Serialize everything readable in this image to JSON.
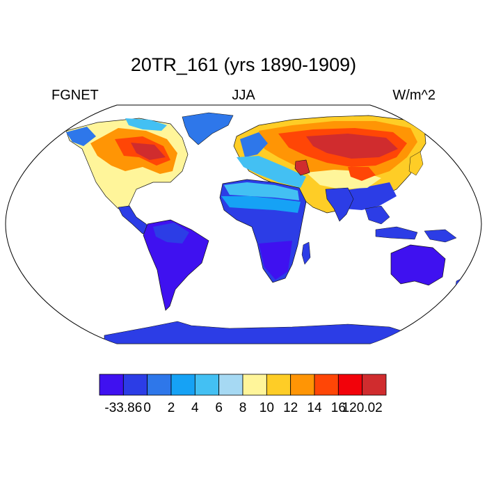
{
  "title": "20TR_161 (yrs 1890-1909)",
  "subtitle_left": "FGNET",
  "subtitle_center": "JJA",
  "subtitle_right": "W/m^2",
  "colorbar": {
    "colors": [
      "#3f11f0",
      "#2c3de6",
      "#2e77ea",
      "#16a2f5",
      "#43c0f3",
      "#a6d9f3",
      "#fff59a",
      "#fecd26",
      "#ff9505",
      "#ff4606",
      "#f2020a",
      "#d02c2e"
    ],
    "labels": [
      "-33.86",
      "0",
      "2",
      "4",
      "6",
      "8",
      "10",
      "12",
      "14",
      "16",
      "120.02"
    ]
  }
}
